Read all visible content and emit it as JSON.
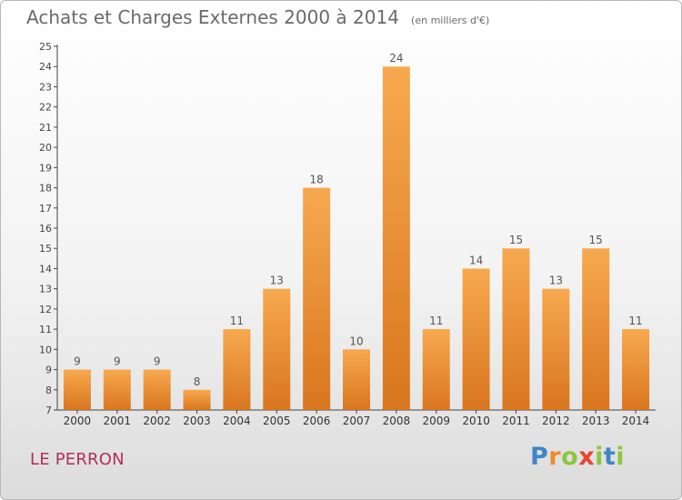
{
  "chart_data": {
    "type": "bar",
    "title": "Achats et Charges Externes 2000 à 2014",
    "subtitle": "(en milliers d'€)",
    "categories": [
      "2000",
      "2001",
      "2002",
      "2003",
      "2004",
      "2005",
      "2006",
      "2007",
      "2008",
      "2009",
      "2010",
      "2011",
      "2012",
      "2013",
      "2014"
    ],
    "values": [
      9,
      9,
      9,
      8,
      11,
      13,
      18,
      10,
      24,
      11,
      14,
      15,
      13,
      15,
      11
    ],
    "ylim": [
      7,
      25
    ],
    "yticks": [
      7,
      8,
      9,
      10,
      11,
      12,
      13,
      14,
      15,
      16,
      17,
      18,
      19,
      20,
      21,
      22,
      23,
      24,
      25
    ],
    "xlabel": "",
    "ylabel": "",
    "grid": false,
    "bar_color_light": "#f7a94f",
    "bar_color_dark": "#d9761f"
  },
  "footer": {
    "city": "LE PERRON",
    "logo_letters": [
      "P",
      "r",
      "o",
      "x",
      "i",
      "t",
      "i"
    ],
    "logo_colors": [
      "#3f86c6",
      "#f18a2e",
      "#8cc63f",
      "#e8452c",
      "#8cc63f",
      "#3f86c6",
      "#8cc63f"
    ]
  }
}
